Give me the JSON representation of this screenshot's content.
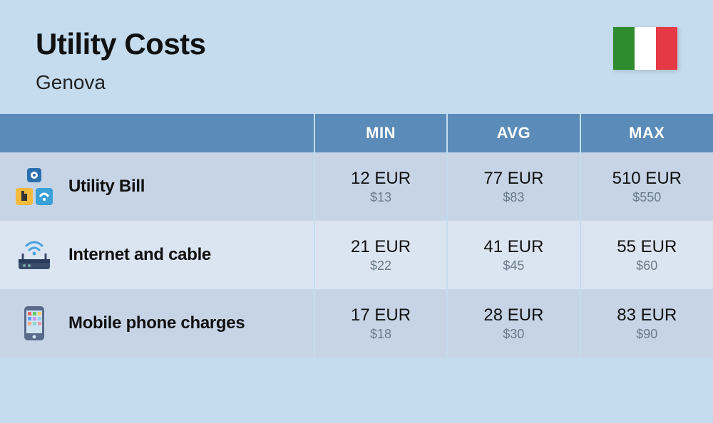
{
  "header": {
    "title": "Utility Costs",
    "subtitle": "Genova",
    "flag_colors": [
      "#2e8b2e",
      "#ffffff",
      "#e63946"
    ]
  },
  "table": {
    "columns": [
      "MIN",
      "AVG",
      "MAX"
    ],
    "col_header_bg": "#5b8bb8",
    "col_header_fg": "#ffffff",
    "row_even_bg": "#c6d4e6",
    "row_odd_bg": "#dbe5f1",
    "primary_color": "#111111",
    "secondary_color": "#6a7a8a",
    "primary_fontsize": 24,
    "secondary_fontsize": 18,
    "label_fontsize": 24,
    "label_fontweight": 800,
    "rows": [
      {
        "label": "Utility Bill",
        "icon": "utility",
        "min": {
          "primary": "12 EUR",
          "secondary": "$13"
        },
        "avg": {
          "primary": "77 EUR",
          "secondary": "$83"
        },
        "max": {
          "primary": "510 EUR",
          "secondary": "$550"
        }
      },
      {
        "label": "Internet and cable",
        "icon": "router",
        "min": {
          "primary": "21 EUR",
          "secondary": "$22"
        },
        "avg": {
          "primary": "41 EUR",
          "secondary": "$45"
        },
        "max": {
          "primary": "55 EUR",
          "secondary": "$60"
        }
      },
      {
        "label": "Mobile phone charges",
        "icon": "phone",
        "min": {
          "primary": "17 EUR",
          "secondary": "$18"
        },
        "avg": {
          "primary": "28 EUR",
          "secondary": "$30"
        },
        "max": {
          "primary": "83 EUR",
          "secondary": "$90"
        }
      }
    ]
  },
  "background_color": "#c4dcee"
}
